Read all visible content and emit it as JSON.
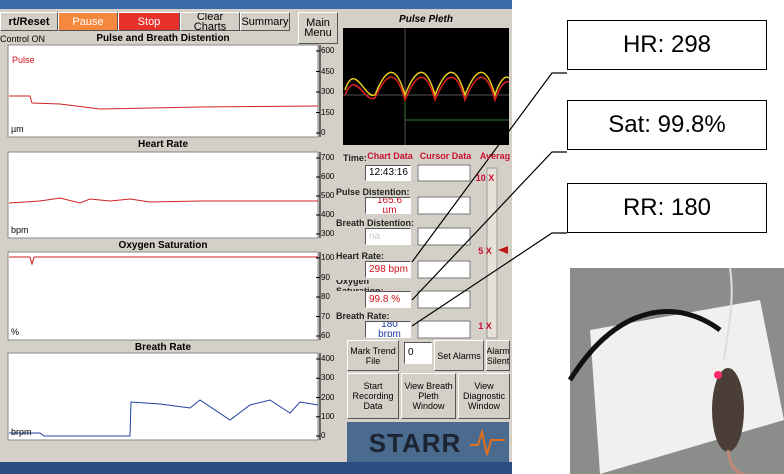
{
  "toolbar": {
    "buttons": [
      "rt/Reset",
      "Pause",
      "Stop",
      "Clear Charts",
      "Summary",
      "Main Menu"
    ],
    "status": "Control ON"
  },
  "trends": [
    {
      "title": "Pulse and Breath Distention",
      "legend": "Pulse",
      "unit": "µm",
      "ticks": [
        "600",
        "450",
        "300",
        "150",
        "0"
      ]
    },
    {
      "title": "Heart Rate",
      "unit": "bpm",
      "ticks": [
        "700",
        "600",
        "500",
        "400",
        "300"
      ]
    },
    {
      "title": "Oxygen Saturation",
      "unit": "%",
      "ticks": [
        "100",
        "90",
        "80",
        "70",
        "60"
      ]
    },
    {
      "title": "Breath Rate",
      "unit": "brpm",
      "ticks": [
        "400",
        "300",
        "200",
        "100",
        "0"
      ]
    }
  ],
  "pleth": {
    "title": "Pulse Pleth"
  },
  "readouts": {
    "time_label": "Time:",
    "chart_data": "Chart Data",
    "cursor_data": "Cursor Data",
    "averaging": "Averag",
    "time": "12:43:16",
    "fields": [
      {
        "label": "Pulse Distention:",
        "value": "165.6 µm"
      },
      {
        "label": "Breath Distention:",
        "value": "na"
      },
      {
        "label": "Heart Rate:",
        "value": "298 bpm"
      },
      {
        "label": "Oxygen Saturation:",
        "value": "99.8 %"
      },
      {
        "label": "Breath Rate:",
        "value": "180 brpm"
      }
    ]
  },
  "averaging_scale": [
    "10 X",
    "5 X",
    "1 X"
  ],
  "actions": {
    "mark_trend": "Mark Trend File",
    "count": "0",
    "set_alarms": "Set Alarms",
    "alarm_silent": "Alarm Silent",
    "start_recording": "Start Recording Data",
    "view_breath": "View Breath Pleth Window",
    "view_diagnostic": "View Diagnostic Window"
  },
  "logo": "STARR",
  "callouts": [
    "HR: 298",
    "Sat: 99.8%",
    "RR: 180"
  ]
}
